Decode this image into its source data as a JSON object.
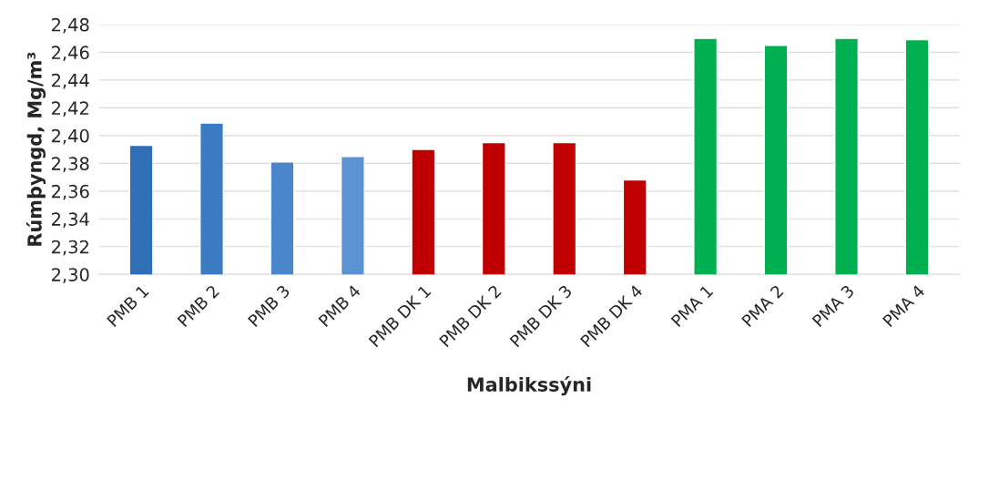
{
  "chart_data": {
    "type": "bar",
    "xlabel": "Malbikssýni",
    "ylabel": "Rúmþyngd, Mg/m³",
    "categories": [
      "PMB 1",
      "PMB 2",
      "PMB 3",
      "PMB 4",
      "PMB DK 1",
      "PMB DK 2",
      "PMB DK 3",
      "PMB DK 4",
      "PMA 1",
      "PMA 2",
      "PMA 3",
      "PMA 4"
    ],
    "values": [
      2.393,
      2.409,
      2.381,
      2.385,
      2.39,
      2.395,
      2.395,
      2.368,
      2.47,
      2.465,
      2.47,
      2.469
    ],
    "colors": [
      "#2f6fb5",
      "#3a7bc4",
      "#4a86cb",
      "#5b93d2",
      "#c00000",
      "#c00000",
      "#c00000",
      "#c00000",
      "#00b050",
      "#00b050",
      "#00b050",
      "#00b050"
    ],
    "ylim": [
      2.3,
      2.48
    ],
    "yticks": [
      {
        "value": 2.3,
        "label": "2,30"
      },
      {
        "value": 2.32,
        "label": "2,32"
      },
      {
        "value": 2.34,
        "label": "2,34"
      },
      {
        "value": 2.36,
        "label": "2,36"
      },
      {
        "value": 2.38,
        "label": "2,38"
      },
      {
        "value": 2.4,
        "label": "2,40"
      },
      {
        "value": 2.42,
        "label": "2,42"
      },
      {
        "value": 2.44,
        "label": "2,44"
      },
      {
        "value": 2.46,
        "label": "2,46"
      },
      {
        "value": 2.48,
        "label": "2,48"
      }
    ],
    "grid": "y",
    "legend": false
  }
}
